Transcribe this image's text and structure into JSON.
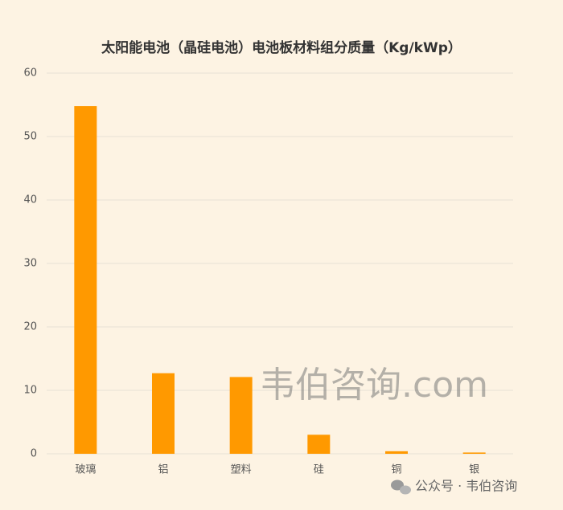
{
  "chart_data": {
    "type": "bar",
    "title": "太阳能电池（晶硅电池）电池板材料组分质量（Kg/kWp）",
    "categories": [
      "玻璃",
      "铝",
      "塑料",
      "硅",
      "铜",
      "银"
    ],
    "values": [
      54.8,
      12.7,
      12.1,
      3.0,
      0.4,
      0.2
    ],
    "color": "#ff9900",
    "ylim": [
      0,
      60
    ],
    "yticks": [
      0,
      10,
      20,
      30,
      40,
      50,
      60
    ],
    "grid": true,
    "watermark": "韦伯咨询.com",
    "source": "公众号 · 韦伯咨询"
  }
}
